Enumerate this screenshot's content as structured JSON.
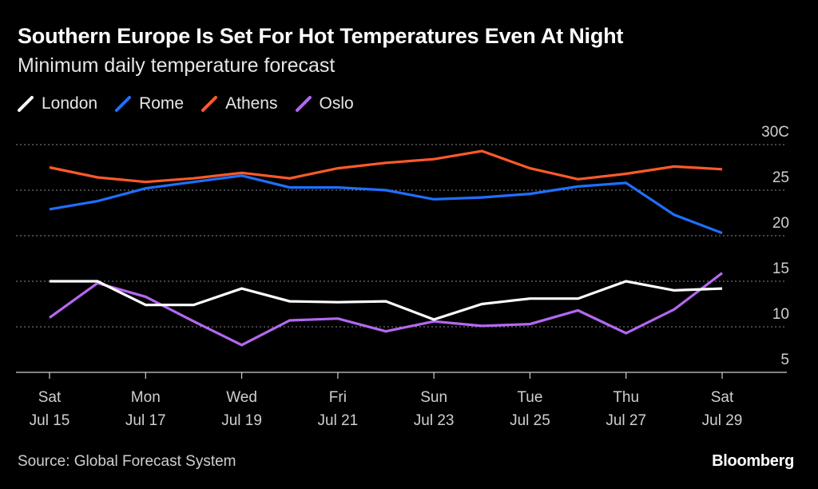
{
  "title": "Southern Europe Is Set For Hot Temperatures Even At Night",
  "subtitle": "Minimum daily temperature forecast",
  "source": "Source: Global Forecast System",
  "brand": "Bloomberg",
  "legend": [
    {
      "name": "London",
      "color": "#ffffff"
    },
    {
      "name": "Rome",
      "color": "#1f6fff"
    },
    {
      "name": "Athens",
      "color": "#ff5a2a"
    },
    {
      "name": "Oslo",
      "color": "#b368f0"
    }
  ],
  "chart_data": {
    "type": "line",
    "title": "Southern Europe Is Set For Hot Temperatures Even At Night",
    "subtitle": "Minimum daily temperature forecast",
    "xlabel": "",
    "ylabel": "",
    "x": [
      "Jul 15",
      "Jul 16",
      "Jul 17",
      "Jul 18",
      "Jul 19",
      "Jul 20",
      "Jul 21",
      "Jul 22",
      "Jul 23",
      "Jul 24",
      "Jul 25",
      "Jul 26",
      "Jul 27",
      "Jul 28",
      "Jul 29"
    ],
    "x_ticks": [
      {
        "index": 0,
        "day": "Sat",
        "date": "Jul 15"
      },
      {
        "index": 2,
        "day": "Mon",
        "date": "Jul 17"
      },
      {
        "index": 4,
        "day": "Wed",
        "date": "Jul 19"
      },
      {
        "index": 6,
        "day": "Fri",
        "date": "Jul 21"
      },
      {
        "index": 8,
        "day": "Sun",
        "date": "Jul 23"
      },
      {
        "index": 10,
        "day": "Tue",
        "date": "Jul 25"
      },
      {
        "index": 12,
        "day": "Thu",
        "date": "Jul 27"
      },
      {
        "index": 14,
        "day": "Sat",
        "date": "Jul 29"
      }
    ],
    "y_ticks": [
      {
        "value": 30,
        "label": "30C"
      },
      {
        "value": 25,
        "label": "25"
      },
      {
        "value": 20,
        "label": "20"
      },
      {
        "value": 15,
        "label": "15"
      },
      {
        "value": 10,
        "label": "10"
      },
      {
        "value": 5,
        "label": "5"
      }
    ],
    "ylim": [
      5,
      30
    ],
    "grid": true,
    "legend_position": "top-left",
    "series": [
      {
        "name": "London",
        "color": "#ffffff",
        "values": [
          15.0,
          15.0,
          12.4,
          12.4,
          14.2,
          12.8,
          12.7,
          12.8,
          10.8,
          12.5,
          13.1,
          13.1,
          15.0,
          14.0,
          14.2
        ]
      },
      {
        "name": "Rome",
        "color": "#1f6fff",
        "values": [
          22.9,
          23.8,
          25.2,
          25.9,
          26.6,
          25.3,
          25.3,
          25.0,
          24.0,
          24.2,
          24.6,
          25.4,
          25.8,
          22.3,
          20.3
        ]
      },
      {
        "name": "Athens",
        "color": "#ff5a2a",
        "values": [
          27.5,
          26.4,
          25.9,
          26.3,
          26.9,
          26.3,
          27.4,
          28.0,
          28.4,
          29.3,
          27.4,
          26.2,
          26.8,
          27.6,
          27.3
        ]
      },
      {
        "name": "Oslo",
        "color": "#b368f0",
        "values": [
          11.0,
          14.8,
          13.3,
          10.6,
          8.0,
          10.7,
          10.9,
          9.5,
          10.6,
          10.1,
          10.3,
          11.8,
          9.3,
          11.9,
          15.9
        ]
      }
    ]
  }
}
